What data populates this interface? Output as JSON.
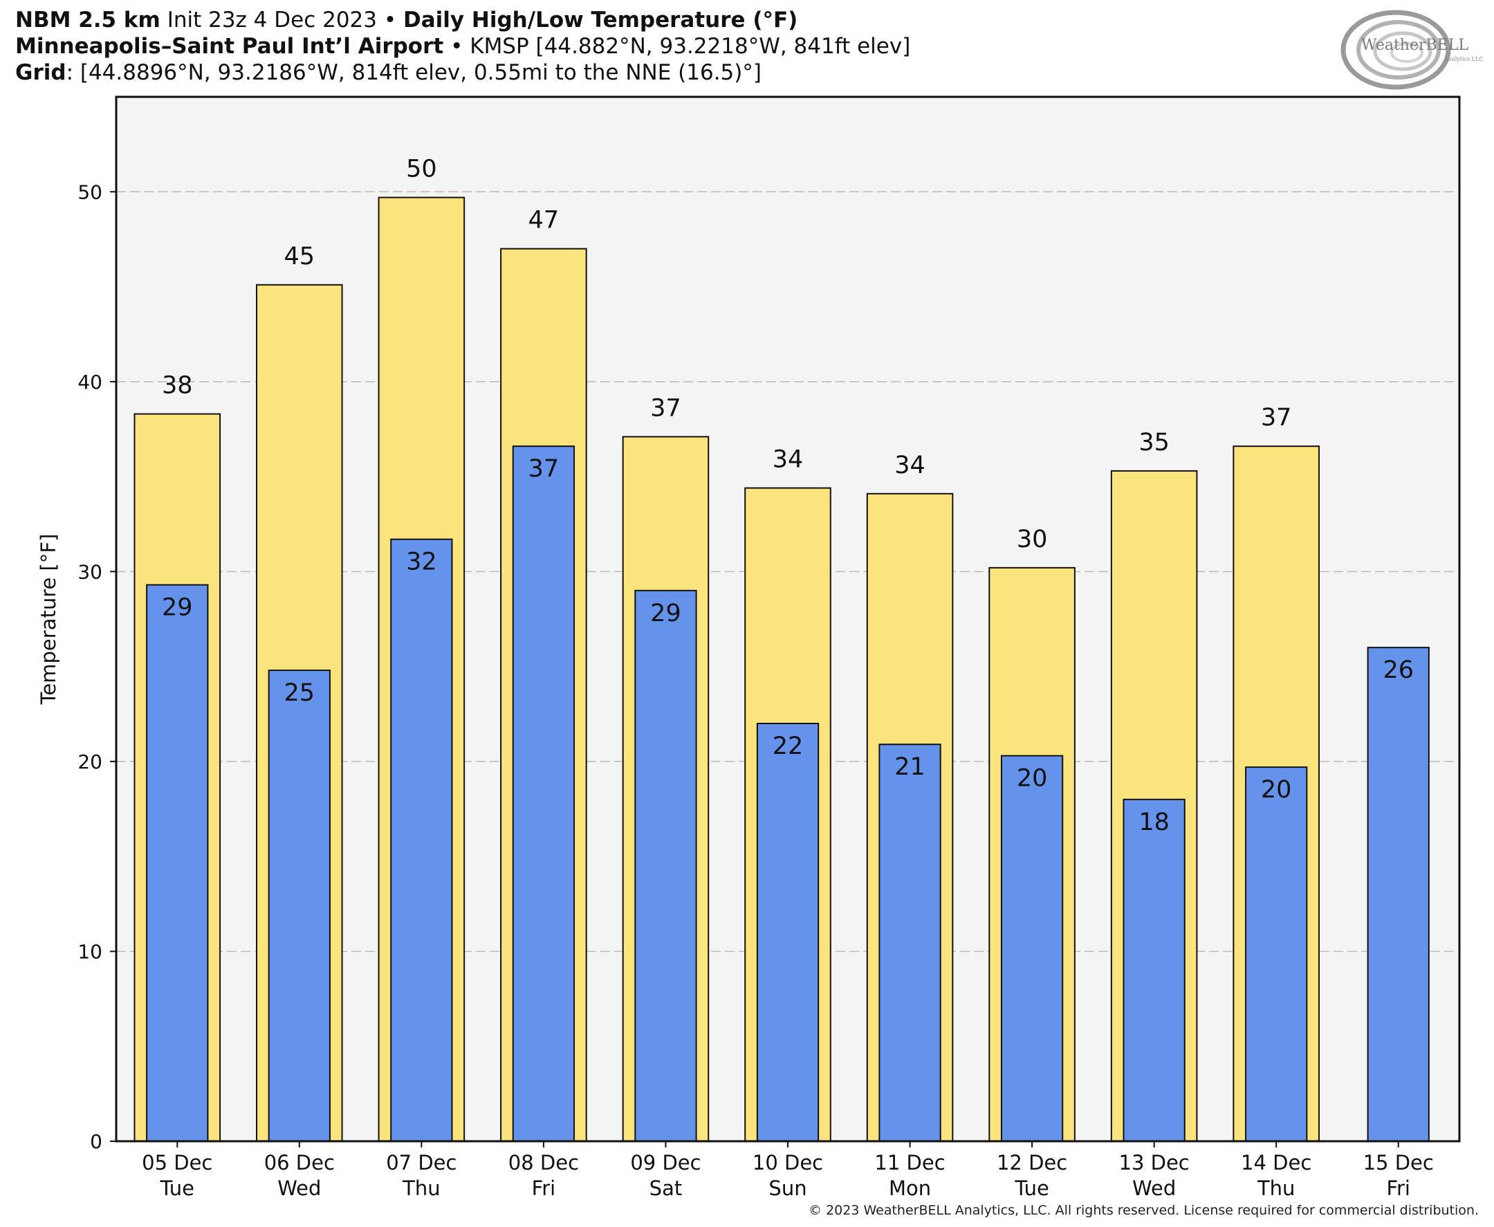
{
  "header": {
    "model": "NBM 2.5 km",
    "init": "Init 23z 4 Dec 2023",
    "sep": "•",
    "product": "Daily High/Low Temperature (°F)",
    "station_name": "Minneapolis–Saint Paul Int’l Airport",
    "station_info": "KMSP [44.882°N, 93.2218°W, 841ft elev]",
    "grid_label": "Grid",
    "grid_info": ": [44.8896°N, 93.2186°W, 814ft elev, 0.55mi to the NNE (16.5)°]"
  },
  "logo": {
    "text_main": "WeatherBELL",
    "text_sub": "Analytics LLC",
    "icon": "swirl-logo-icon"
  },
  "copyright": "© 2023 WeatherBELL Analytics, LLC. All rights reserved. License required for commercial distribution.",
  "chart_data": {
    "type": "bar",
    "title": "",
    "xlabel": "",
    "ylabel": "Temperature [°F]",
    "ylim": [
      0,
      55
    ],
    "yticks": [
      0,
      10,
      20,
      30,
      40,
      50
    ],
    "grid": true,
    "categories": [
      [
        "05 Dec",
        "Tue"
      ],
      [
        "06 Dec",
        "Wed"
      ],
      [
        "07 Dec",
        "Thu"
      ],
      [
        "08 Dec",
        "Fri"
      ],
      [
        "09 Dec",
        "Sat"
      ],
      [
        "10 Dec",
        "Sun"
      ],
      [
        "11 Dec",
        "Mon"
      ],
      [
        "12 Dec",
        "Tue"
      ],
      [
        "13 Dec",
        "Wed"
      ],
      [
        "14 Dec",
        "Thu"
      ],
      [
        "15 Dec",
        "Fri"
      ]
    ],
    "series": [
      {
        "key": "high",
        "values": [
          38.3,
          45.1,
          49.7,
          47.0,
          37.1,
          34.4,
          34.1,
          30.2,
          35.3,
          36.6,
          null
        ],
        "labels": [
          "38",
          "45",
          "50",
          "47",
          "37",
          "34",
          "34",
          "30",
          "35",
          "37",
          ""
        ],
        "color": "#fbe37e"
      },
      {
        "key": "low",
        "values": [
          29.3,
          24.8,
          31.7,
          36.6,
          29.0,
          22.0,
          20.9,
          20.3,
          18.0,
          19.7,
          26.0
        ],
        "labels": [
          "29",
          "25",
          "32",
          "37",
          "29",
          "22",
          "21",
          "20",
          "18",
          "20",
          "26"
        ],
        "color": "#6593eb"
      }
    ],
    "colors": {
      "plot_background": "#f4f4f5",
      "grid": "#b9b9b9",
      "edge": "#111111"
    }
  }
}
